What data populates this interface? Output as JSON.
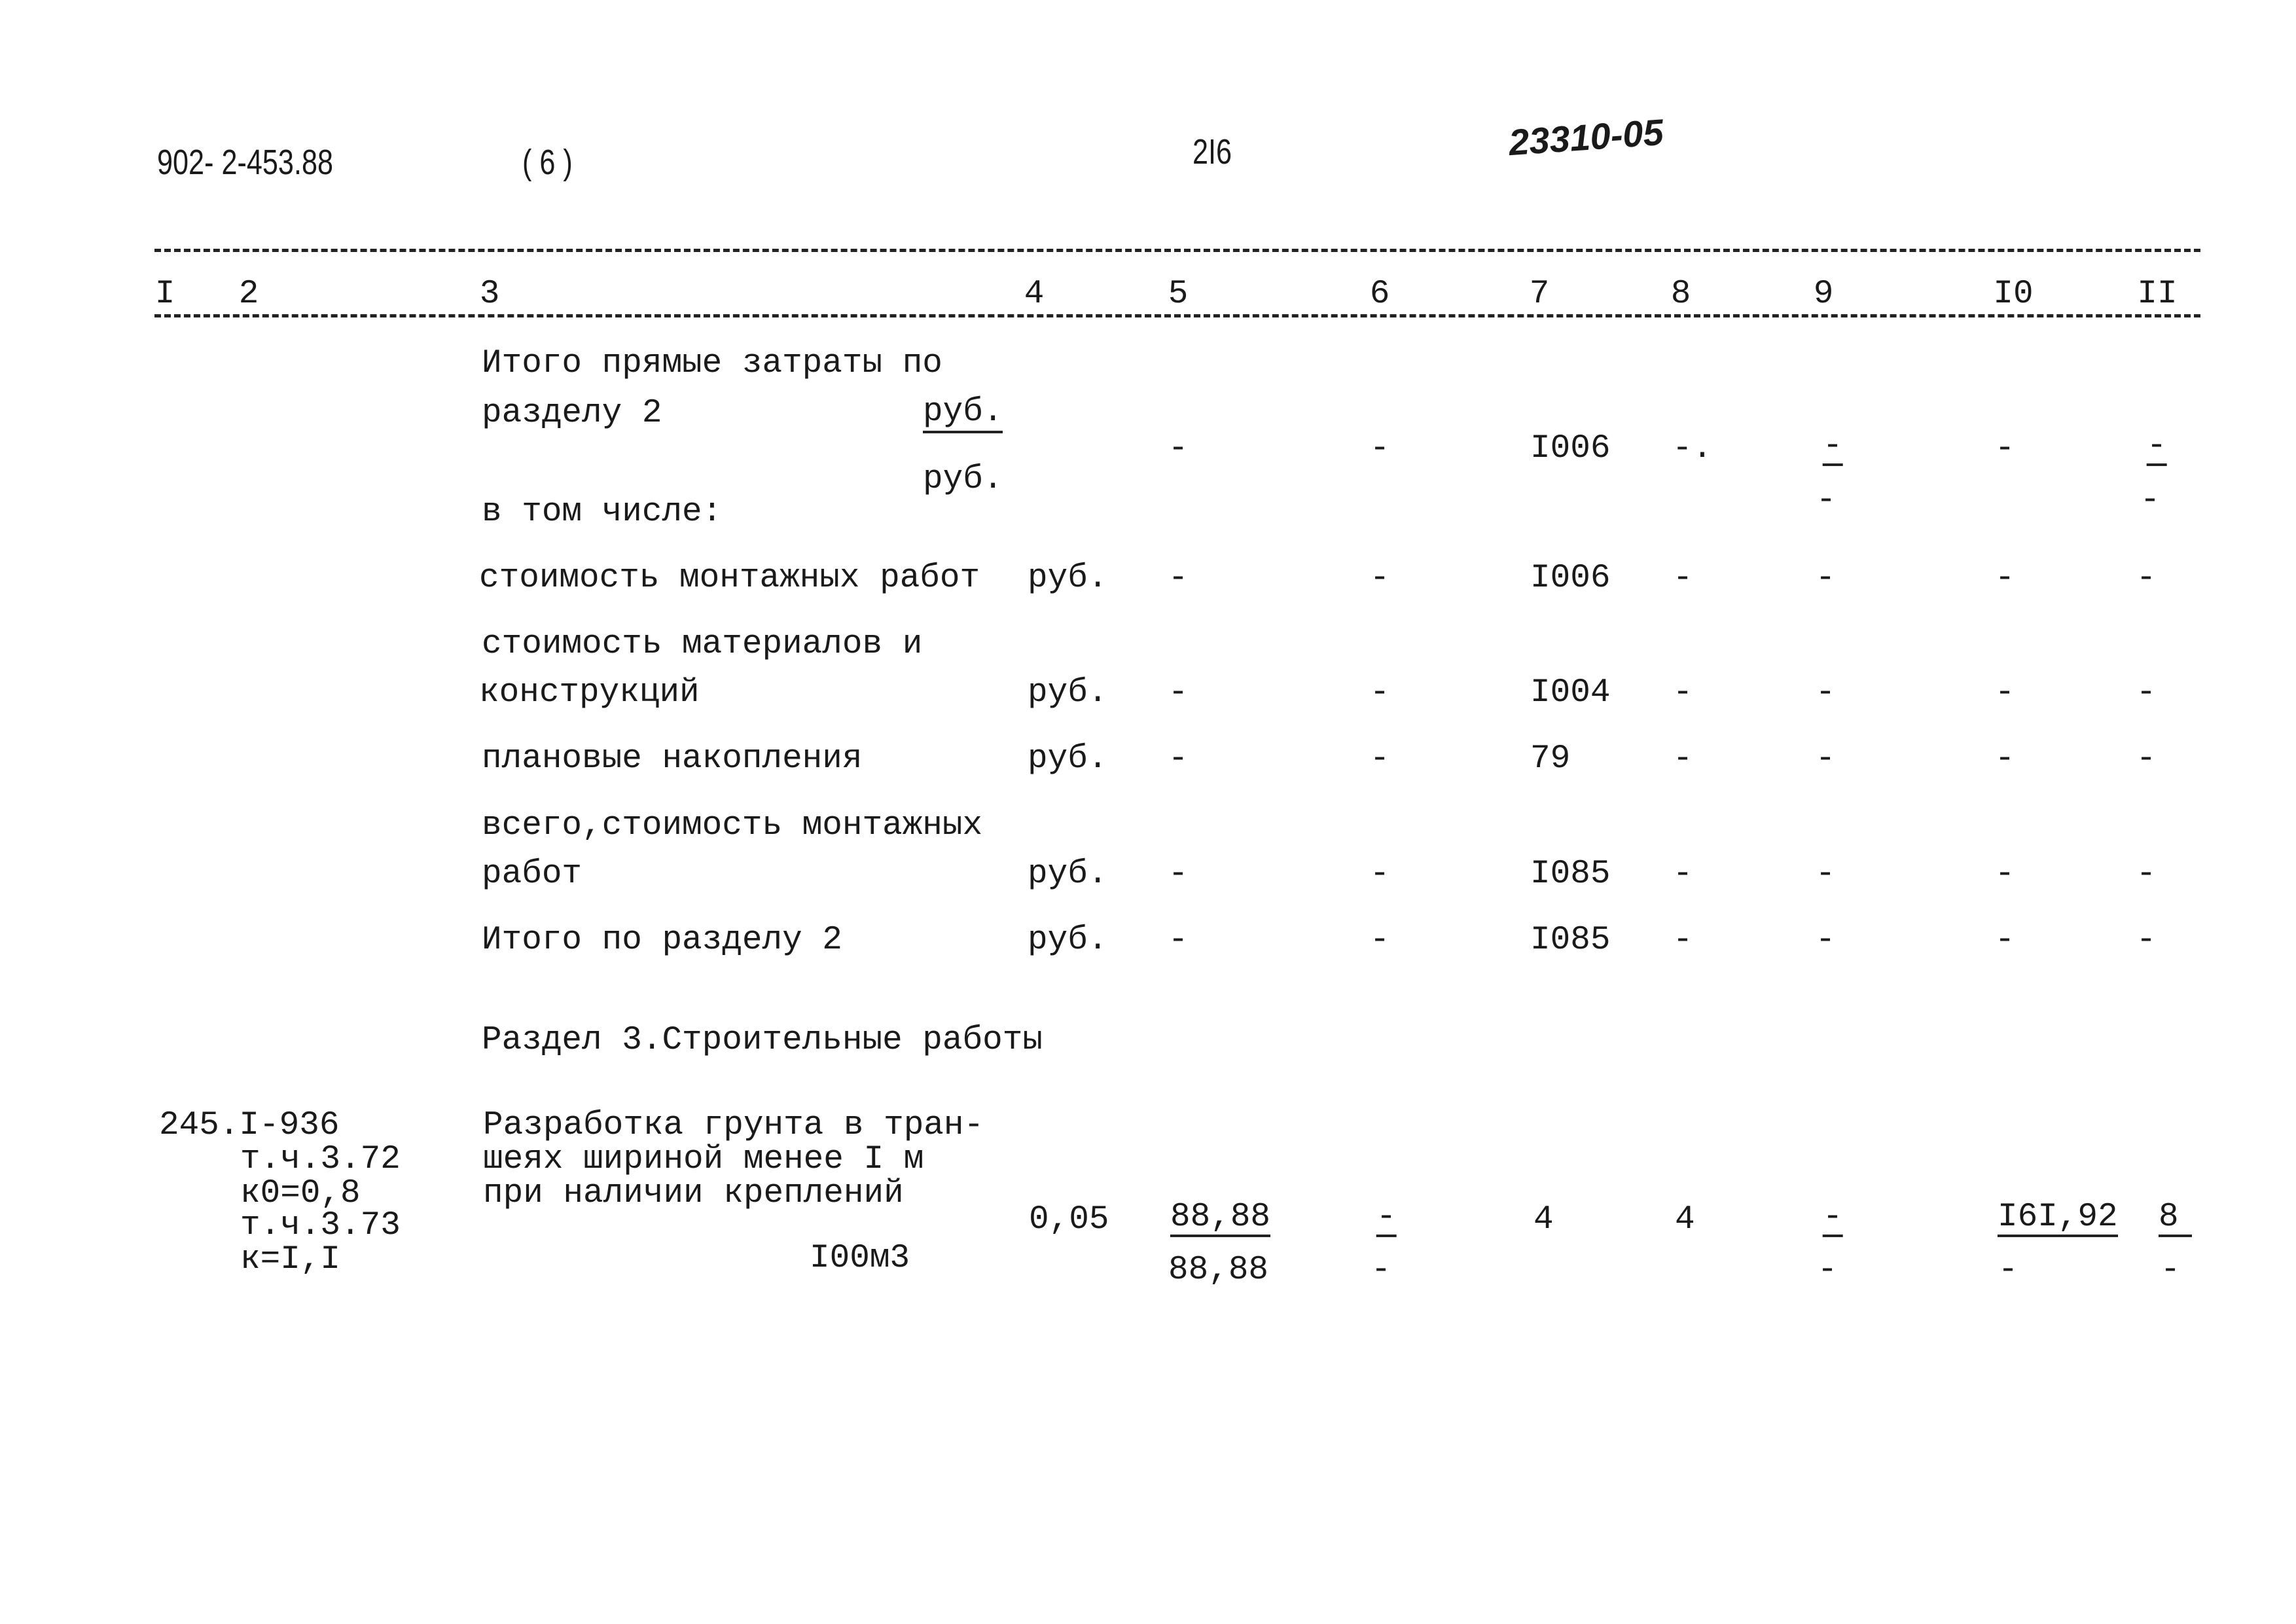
{
  "header": {
    "doc_number": "902- 2-453.88",
    "volume": "( 6 )",
    "page_number": "2I6",
    "handwritten_code": "23310-05"
  },
  "columns": [
    "I",
    "2",
    "3",
    "4",
    "5",
    "6",
    "7",
    "8",
    "9",
    "I0",
    "II"
  ],
  "rows": {
    "total_direct": {
      "line1": "Итого прямые затраты по",
      "line2": "разделу 2",
      "unit_top": "руб.",
      "unit_bottom": "руб.",
      "c5": "-",
      "c6": "-",
      "c7": "I006",
      "c8": "-.",
      "c9_top": "-",
      "c9_bottom": "-",
      "c10": "-",
      "c11_top": "-",
      "c11_bottom": "-"
    },
    "including": "в том числе:",
    "installation": {
      "label": "стоимость монтажных работ",
      "unit": "руб.",
      "c5": "-",
      "c6": "-",
      "c7": "I006",
      "c8": "-",
      "c9": "-",
      "c10": "-",
      "c11": "-"
    },
    "materials": {
      "line1": "стоимость материалов и",
      "line2": "конструкций",
      "unit": "руб.",
      "c5": "-",
      "c6": "-",
      "c7": "I004",
      "c8": "-",
      "c9": "-",
      "c10": "-",
      "c11": "-"
    },
    "planned": {
      "label": "плановые накопления",
      "unit": "руб.",
      "c5": "-",
      "c6": "-",
      "c7": "79",
      "c8": "-",
      "c9": "-",
      "c10": "-",
      "c11": "-"
    },
    "total_install": {
      "line1": "всего,стоимость монтажных",
      "line2": "работ",
      "unit": "руб.",
      "c5": "-",
      "c6": "-",
      "c7": "I085",
      "c8": "-",
      "c9": "-",
      "c10": "-",
      "c11": "-"
    },
    "section_total": {
      "label": "Итого по разделу 2",
      "unit": "руб.",
      "c5": "-",
      "c6": "-",
      "c7": "I085",
      "c8": "-",
      "c9": "-",
      "c10": "-",
      "c11": "-"
    }
  },
  "section3": {
    "title": "Раздел 3.Строительные работы",
    "item": {
      "codes": [
        "245.I-936",
        "т.ч.3.72",
        "к0=0,8",
        "т.ч.3.73",
        "к=I,I"
      ],
      "description": [
        "Разработка грунта в тран-",
        "шеях шириной менее I м",
        "при наличии креплений"
      ],
      "unit": "I00м3",
      "c4": "0,05",
      "c5_top": "88,88",
      "c5_bottom": "88,88",
      "c6_top": "-",
      "c6_bottom": "-",
      "c7": "4",
      "c8": "4",
      "c9_top": "-",
      "c9_bottom": "-",
      "c10_top": "I6I,92",
      "c10_bottom": "-",
      "c11_top": "8",
      "c11_bottom": "-"
    }
  }
}
